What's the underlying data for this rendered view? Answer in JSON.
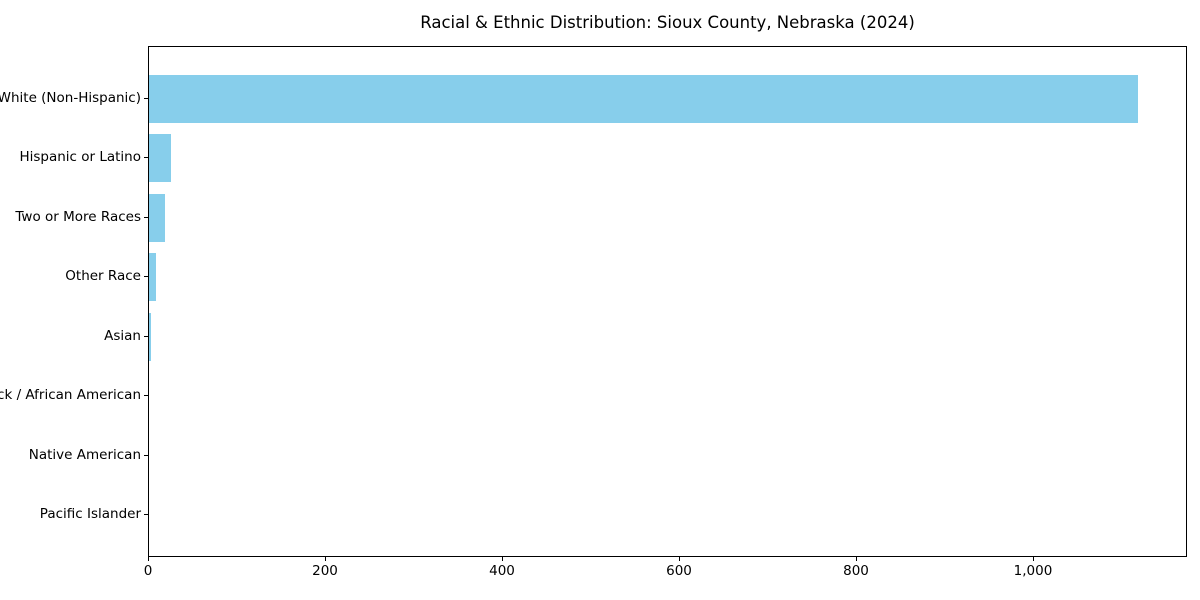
{
  "chart_data": {
    "type": "bar",
    "orientation": "horizontal",
    "title": "Racial & Ethnic Distribution: Sioux County, Nebraska (2024)",
    "categories": [
      "White (Non-Hispanic)",
      "Hispanic or Latino",
      "Two or More Races",
      "Other Race",
      "Asian",
      "Black / African American",
      "Native American",
      "Pacific Islander"
    ],
    "values": [
      1118,
      25,
      18,
      8,
      2,
      0,
      0,
      0
    ],
    "xlabel": "",
    "ylabel": "",
    "xlim": [
      0,
      1174
    ],
    "x_ticks": [
      0,
      200,
      400,
      600,
      800,
      1000
    ],
    "x_tick_labels": [
      "0",
      "200",
      "400",
      "600",
      "800",
      "1,000"
    ],
    "bar_color": "#87CEEB",
    "axis_color": "#000000",
    "background_color": "#ffffff",
    "grid": false,
    "legend": false
  }
}
